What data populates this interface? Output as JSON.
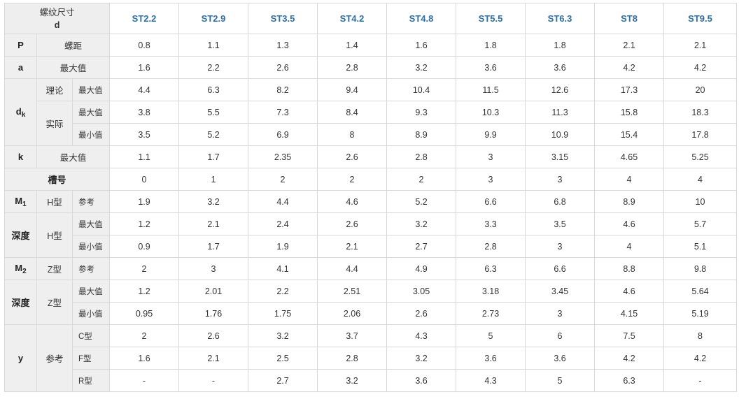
{
  "header": {
    "corner_line1": "螺纹尺寸",
    "corner_line2": "d",
    "sizes": [
      "ST2.2",
      "ST2.9",
      "ST3.5",
      "ST4.2",
      "ST4.8",
      "ST5.5",
      "ST6.3",
      "ST8",
      "ST9.5"
    ]
  },
  "labels": {
    "P": "P",
    "a": "a",
    "dk_main": "d",
    "dk_sub": "k",
    "k": "k",
    "M1_main": "M",
    "M1_sub": "1",
    "M2_main": "M",
    "M2_sub": "2",
    "depth": "深度",
    "y": "y",
    "slot_no": "槽号",
    "pitch": "螺距",
    "max": "最大值",
    "min": "最小值",
    "theory": "理论",
    "actual": "实际",
    "h_type": "H型",
    "z_type": "Z型",
    "ref": "参考",
    "c_type": "C型",
    "f_type": "F型",
    "r_type": "R型"
  },
  "rows": {
    "P": [
      "0.8",
      "1.1",
      "1.3",
      "1.4",
      "1.6",
      "1.8",
      "1.8",
      "2.1",
      "2.1"
    ],
    "a_max": [
      "1.6",
      "2.2",
      "2.6",
      "2.8",
      "3.2",
      "3.6",
      "3.6",
      "4.2",
      "4.2"
    ],
    "dk_theory_max": [
      "4.4",
      "6.3",
      "8.2",
      "9.4",
      "10.4",
      "11.5",
      "12.6",
      "17.3",
      "20"
    ],
    "dk_actual_max": [
      "3.8",
      "5.5",
      "7.3",
      "8.4",
      "9.3",
      "10.3",
      "11.3",
      "15.8",
      "18.3"
    ],
    "dk_actual_min": [
      "3.5",
      "5.2",
      "6.9",
      "8",
      "8.9",
      "9.9",
      "10.9",
      "15.4",
      "17.8"
    ],
    "k_max": [
      "1.1",
      "1.7",
      "2.35",
      "2.6",
      "2.8",
      "3",
      "3.15",
      "4.65",
      "5.25"
    ],
    "slot_no": [
      "0",
      "1",
      "2",
      "2",
      "2",
      "3",
      "3",
      "4",
      "4"
    ],
    "M1_h_ref": [
      "1.9",
      "3.2",
      "4.4",
      "4.6",
      "5.2",
      "6.6",
      "6.8",
      "8.9",
      "10"
    ],
    "depth_h_max": [
      "1.2",
      "2.1",
      "2.4",
      "2.6",
      "3.2",
      "3.3",
      "3.5",
      "4.6",
      "5.7"
    ],
    "depth_h_min": [
      "0.9",
      "1.7",
      "1.9",
      "2.1",
      "2.7",
      "2.8",
      "3",
      "4",
      "5.1"
    ],
    "M2_z_ref": [
      "2",
      "3",
      "4.1",
      "4.4",
      "4.9",
      "6.3",
      "6.6",
      "8.8",
      "9.8"
    ],
    "depth_z_max": [
      "1.2",
      "2.01",
      "2.2",
      "2.51",
      "3.05",
      "3.18",
      "3.45",
      "4.6",
      "5.64"
    ],
    "depth_z_min": [
      "0.95",
      "1.76",
      "1.75",
      "2.06",
      "2.6",
      "2.73",
      "3",
      "4.15",
      "5.19"
    ],
    "y_c": [
      "2",
      "2.6",
      "3.2",
      "3.7",
      "4.3",
      "5",
      "6",
      "7.5",
      "8"
    ],
    "y_f": [
      "1.6",
      "2.1",
      "2.5",
      "2.8",
      "3.2",
      "3.6",
      "3.6",
      "4.2",
      "4.2"
    ],
    "y_r": [
      "-",
      "-",
      "2.7",
      "3.2",
      "3.6",
      "4.3",
      "5",
      "6.3",
      "-"
    ]
  }
}
